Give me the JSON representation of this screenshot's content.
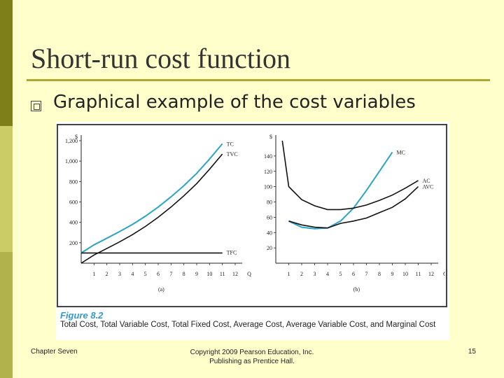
{
  "slide": {
    "title": "Short-run cost function",
    "bullet": "Graphical example of the cost variables",
    "footer_left": "Chapter Seven",
    "footer_mid_line1": "Copyright 2009 Pearson Education, Inc.",
    "footer_mid_line2": "Publishing as Prentice Hall.",
    "page_number": "15"
  },
  "figure": {
    "label": "Figure 8.2",
    "caption": "Total Cost, Total Variable Cost, Total Fixed Cost, Average Cost, Average Variable Cost, and Marginal Cost"
  },
  "colors": {
    "teal": "#2aa6c4",
    "black": "#111111"
  },
  "chart_data": [
    {
      "type": "line",
      "panel_label": "(a)",
      "ylabel": "$",
      "xlabel": "Q",
      "ylim": [
        0,
        1200
      ],
      "xlim": [
        0,
        12
      ],
      "x_ticks": [
        1,
        2,
        3,
        4,
        5,
        6,
        7,
        8,
        9,
        10,
        11,
        12
      ],
      "y_ticks": [
        200,
        400,
        600,
        800,
        1000,
        1200
      ],
      "y_tick_labels": [
        "200",
        "400",
        "600",
        "800",
        "1,000",
        "1,200"
      ],
      "series": [
        {
          "name": "TC",
          "color": "#2aa6c4",
          "x": [
            0,
            1,
            2,
            3,
            4,
            5,
            6,
            7,
            8,
            9,
            10,
            11
          ],
          "y": [
            100,
            180,
            245,
            310,
            380,
            460,
            550,
            650,
            760,
            880,
            1020,
            1170
          ]
        },
        {
          "name": "TVC",
          "color": "#111111",
          "x": [
            0,
            1,
            2,
            3,
            4,
            5,
            6,
            7,
            8,
            9,
            10,
            11
          ],
          "y": [
            0,
            80,
            145,
            210,
            280,
            360,
            450,
            550,
            660,
            780,
            920,
            1070
          ]
        },
        {
          "name": "TFC",
          "color": "#111111",
          "x": [
            0,
            1,
            2,
            3,
            4,
            5,
            6,
            7,
            8,
            9,
            10,
            11
          ],
          "y": [
            100,
            100,
            100,
            100,
            100,
            100,
            100,
            100,
            100,
            100,
            100,
            100
          ]
        }
      ]
    },
    {
      "type": "line",
      "panel_label": "(b)",
      "ylabel": "$",
      "xlabel": "Q",
      "ylim": [
        0,
        160
      ],
      "xlim": [
        0,
        12
      ],
      "x_ticks": [
        1,
        2,
        3,
        4,
        5,
        6,
        7,
        8,
        9,
        10,
        11,
        12
      ],
      "y_ticks": [
        20,
        40,
        60,
        80,
        100,
        120,
        140
      ],
      "y_tick_labels": [
        "20",
        "40",
        "60",
        "80",
        "100",
        "120",
        "140"
      ],
      "series": [
        {
          "name": "MC",
          "color": "#2aa6c4",
          "x": [
            1,
            2,
            3,
            4,
            5,
            6,
            7,
            8,
            9
          ],
          "y": [
            55,
            47,
            45,
            46,
            55,
            72,
            95,
            120,
            145
          ]
        },
        {
          "name": "AC",
          "color": "#111111",
          "x": [
            0.5,
            1,
            2,
            3,
            4,
            5,
            6,
            7,
            8,
            9,
            10,
            11
          ],
          "y": [
            160,
            100,
            83,
            75,
            70,
            70,
            72,
            76,
            82,
            89,
            98,
            108
          ]
        },
        {
          "name": "AVC",
          "color": "#111111",
          "x": [
            1,
            2,
            3,
            4,
            5,
            6,
            7,
            8,
            9,
            10,
            11
          ],
          "y": [
            55,
            50,
            47,
            46,
            52,
            55,
            59,
            66,
            73,
            84,
            100
          ]
        }
      ]
    }
  ]
}
